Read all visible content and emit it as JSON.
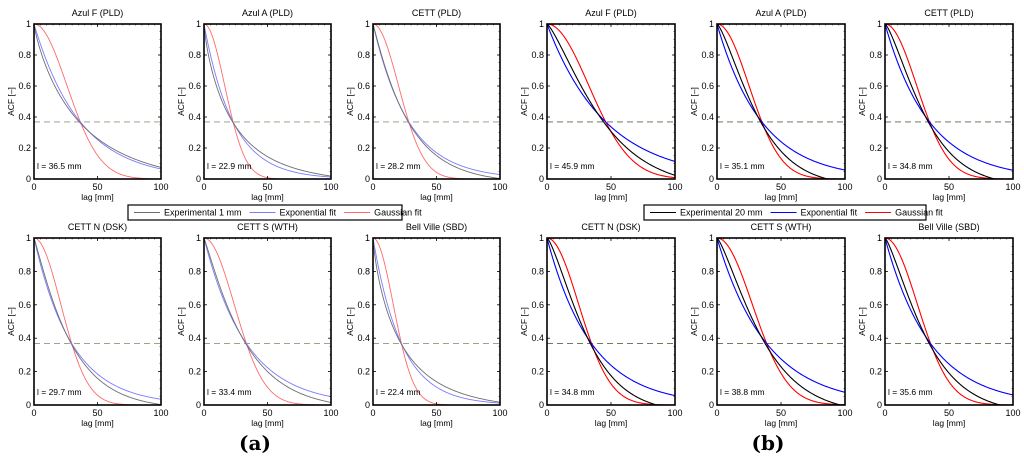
{
  "figure": {
    "panel_labels": [
      "(a)",
      "(b)"
    ]
  },
  "chart_data": [
    {
      "panel": "(a)",
      "type": "line",
      "legend": {
        "placement": "center-between-rows",
        "entries": [
          {
            "label": "Experimental 1 mm",
            "color": "#6e6e6e"
          },
          {
            "label": "Exponential fit",
            "color": "#7b7bff"
          },
          {
            "label": "Gaussian fit",
            "color": "#ff6a6a"
          }
        ]
      },
      "subplots": [
        {
          "title": "Azul F (PLD)",
          "annotation": "l = 36.5 mm",
          "l_mm": 36.5,
          "exp_shape": 0.85
        },
        {
          "title": "Azul A (PLD)",
          "annotation": "l = 22.9 mm",
          "l_mm": 22.9,
          "exp_shape": 0.8
        },
        {
          "title": "CETT (PLD)",
          "annotation": "l = 28.2 mm",
          "l_mm": 28.2,
          "exp_shape": 1.05
        },
        {
          "title": "CETT N (DSK)",
          "annotation": "l = 29.7 mm",
          "l_mm": 29.7,
          "exp_shape": 1.1
        },
        {
          "title": "CETT S (WTH)",
          "annotation": "l = 33.4 mm",
          "l_mm": 33.4,
          "exp_shape": 1.1
        },
        {
          "title": "Bell Ville (SBD)",
          "annotation": "l = 22.4 mm",
          "l_mm": 22.4,
          "exp_shape": 0.8
        }
      ],
      "xlabel": "lag [mm]",
      "ylabel": "ACF [–]",
      "xlim": [
        0,
        100
      ],
      "ylim": [
        0,
        1
      ],
      "xticks": [
        "0",
        "50",
        "100"
      ],
      "yticks": [
        "0",
        "0.2",
        "0.4",
        "0.6",
        "0.8",
        "1"
      ],
      "reference_line": {
        "y": 0.3679,
        "label": "1/e",
        "style": "dashed",
        "color": "#8a9a7a"
      },
      "series_models": {
        "Exponential fit": "exp(-x/l)",
        "Gaussian fit": "exp(-(x/l)^2)",
        "Experimental": "exp(-(x/l)^exp_shape), approx"
      }
    },
    {
      "panel": "(b)",
      "type": "line",
      "legend": {
        "placement": "center-between-rows",
        "entries": [
          {
            "label": "Experimental 20 mm",
            "color": "#000000"
          },
          {
            "label": "Exponential fit",
            "color": "#0000ff"
          },
          {
            "label": "Gaussian fit",
            "color": "#ff0000"
          }
        ]
      },
      "subplots": [
        {
          "title": "Azul F (PLD)",
          "annotation": "l = 45.9 mm",
          "l_mm": 45.9,
          "exp_shape": 1.3
        },
        {
          "title": "Azul A (PLD)",
          "annotation": "l = 35.1 mm",
          "l_mm": 35.1,
          "exp_shape": 1.35
        },
        {
          "title": "CETT (PLD)",
          "annotation": "l = 34.8 mm",
          "l_mm": 34.8,
          "exp_shape": 1.35
        },
        {
          "title": "CETT N (DSK)",
          "annotation": "l = 34.8 mm",
          "l_mm": 34.8,
          "exp_shape": 1.35
        },
        {
          "title": "CETT S (WTH)",
          "annotation": "l = 38.8 mm",
          "l_mm": 38.8,
          "exp_shape": 1.3
        },
        {
          "title": "Bell Ville (SBD)",
          "annotation": "l = 35.6 mm",
          "l_mm": 35.6,
          "exp_shape": 1.3
        }
      ],
      "xlabel": "lag [mm]",
      "ylabel": "ACF [–]",
      "xlim": [
        0,
        100
      ],
      "ylim": [
        0,
        1
      ],
      "xticks": [
        "0",
        "50",
        "100"
      ],
      "yticks": [
        "0",
        "0.2",
        "0.4",
        "0.6",
        "0.8",
        "1"
      ],
      "reference_line": {
        "y": 0.3679,
        "label": "1/e",
        "style": "dashed",
        "color": "#5a6a4a"
      },
      "series_models": {
        "Exponential fit": "exp(-x/l)",
        "Gaussian fit": "exp(-(x/l)^2)",
        "Experimental": "exp(-(x/l)^exp_shape), approx"
      }
    }
  ]
}
